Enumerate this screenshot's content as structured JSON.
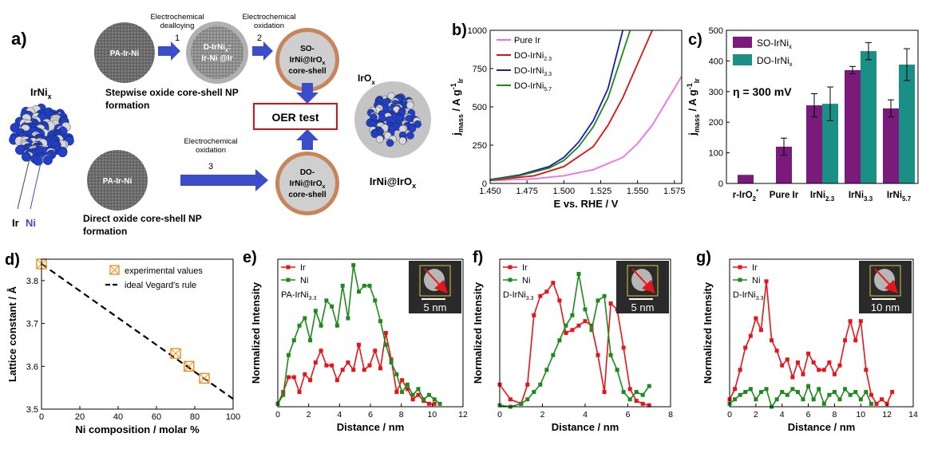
{
  "colors": {
    "ir": "#e8141a",
    "ni": "#1e8a1e",
    "pure_ir": "#f06ee8",
    "do22": "#e01010",
    "do33": "#1a1ab8",
    "do57": "#1a8a1a",
    "so_bar": "#7a1a7a",
    "do_bar": "#1a8f86",
    "blue": "#1f3fcc",
    "arrow": "#3b4ec8",
    "shell": "#c8845a",
    "np": "#555555"
  },
  "icons": [
    "arrow-right-icon",
    "arrow-down-icon",
    "arrow-up-icon",
    "nanoparticle-icon",
    "core-shell-icon",
    "scale-bar-icon",
    "red-arrow-icon"
  ],
  "panel_a": {
    "label": "a)",
    "irni_title": "IrNi",
    "irni_sub": "x",
    "legend_ir": "Ir",
    "legend_ni": "Ni",
    "step1_top": "Electrochemical",
    "step1_mid": "dealloying",
    "step1_num": "1",
    "step2_top": "Electrochemical",
    "step2_mid": "oxidation",
    "step2_num": "2",
    "step3_top": "Electrochemical",
    "step3_mid": "oxidation",
    "step3_num": "3",
    "np1": "PA-Ir-Ni",
    "np2_l1": "D-IrNi",
    "np2_sub": "x",
    "np2_l2": "Ir-Ni @Ir",
    "so_l1": "SO-",
    "so_l2": "IrNi@IrO",
    "so_sub": "x",
    "so_l3": "core-shell",
    "np3": "PA-Ir-Ni",
    "do_l1": "DO-",
    "do_l2": "IrNi@IrO",
    "do_sub": "x",
    "do_l3": "core-shell",
    "oer": "OER test",
    "stepwise_l1": "Stepwise oxide core-shell NP",
    "stepwise_l2": "formation",
    "direct_l1": "Direct oxide core-shell NP",
    "direct_l2": "formation",
    "irox": "IrO",
    "irox_sub": "x",
    "final": "IrNi@IrO",
    "final_sub": "x"
  },
  "chart_data": [
    {
      "id": "b",
      "type": "line",
      "label": "b)",
      "xlabel": "E vs. RHE / V",
      "ylabel_main": "j",
      "ylabel_sub": "mass",
      "ylabel_unit": " / A g",
      "ylabel_sup": "-1",
      "ylabel_sub2": "Ir",
      "xlim": [
        1.45,
        1.58
      ],
      "ylim": [
        0,
        1000
      ],
      "xticks": [
        "1.450",
        "1.475",
        "1.500",
        "1.525",
        "1.550",
        "1.575"
      ],
      "yticks": [
        "0",
        "250",
        "500",
        "750",
        "1000"
      ],
      "series": [
        {
          "name": "Pure Ir",
          "sub": "",
          "x": [
            1.45,
            1.48,
            1.5,
            1.52,
            1.54,
            1.55,
            1.56,
            1.57,
            1.58
          ],
          "y": [
            18,
            30,
            50,
            90,
            170,
            260,
            380,
            540,
            700
          ]
        },
        {
          "name": "DO-IrNi",
          "sub": "2.3",
          "x": [
            1.45,
            1.48,
            1.5,
            1.52,
            1.53,
            1.54,
            1.55,
            1.56
          ],
          "y": [
            20,
            50,
            110,
            240,
            380,
            560,
            780,
            1000
          ]
        },
        {
          "name": "DO-IrNi",
          "sub": "3.3",
          "x": [
            1.45,
            1.47,
            1.49,
            1.5,
            1.51,
            1.52,
            1.53,
            1.54
          ],
          "y": [
            25,
            55,
            110,
            170,
            270,
            410,
            620,
            1000
          ]
        },
        {
          "name": "DO-IrNi",
          "sub": "5.7",
          "x": [
            1.45,
            1.47,
            1.49,
            1.5,
            1.51,
            1.52,
            1.53,
            1.545
          ],
          "y": [
            22,
            50,
            100,
            150,
            240,
            370,
            560,
            1000
          ]
        }
      ]
    },
    {
      "id": "c",
      "type": "bar",
      "label": "c)",
      "ylabel_main": "j",
      "ylabel_sub": "mass",
      "ylabel_unit": " / A g",
      "ylabel_sup": "-1",
      "ylabel_sub2": "Ir",
      "annotation": "η = 300 mV",
      "ylim": [
        0,
        500
      ],
      "yticks": [
        "0",
        "100",
        "200",
        "300",
        "400",
        "500"
      ],
      "categories": [
        {
          "main": "r-IrO",
          "sub": "",
          "sup": "2",
          "sup2": "*"
        },
        {
          "main": "Pure Ir",
          "sub": ""
        },
        {
          "main": "IrNi",
          "sub": "2.3"
        },
        {
          "main": "IrNi",
          "sub": "3.3"
        },
        {
          "main": "IrNi",
          "sub": "5.7"
        }
      ],
      "series": [
        {
          "name": "SO-IrNi",
          "sub": "x",
          "values": [
            28,
            120,
            255,
            370,
            245
          ],
          "err": [
            0,
            28,
            38,
            12,
            28
          ]
        },
        {
          "name": "DO-IrNi",
          "sub": "x",
          "values": [
            null,
            null,
            260,
            432,
            388
          ],
          "err": [
            0,
            0,
            55,
            28,
            52
          ]
        }
      ]
    },
    {
      "id": "d",
      "type": "scatter",
      "label": "d)",
      "xlabel": "Ni composition / molar %",
      "ylabel": "Lattice constant / Å",
      "xlim": [
        0,
        100
      ],
      "ylim": [
        3.5,
        3.85
      ],
      "xticks": [
        "0",
        "20",
        "40",
        "60",
        "80",
        "100"
      ],
      "yticks": [
        "3.5",
        "3.6",
        "3.7",
        "3.8"
      ],
      "legend": [
        "experimental values",
        "ideal Vegard's rule"
      ],
      "points": {
        "x": [
          0,
          70,
          77,
          85
        ],
        "y": [
          3.839,
          3.63,
          3.6,
          3.572
        ]
      },
      "line": {
        "x": [
          0,
          100
        ],
        "y": [
          3.839,
          3.524
        ]
      }
    },
    {
      "id": "e",
      "type": "line",
      "label": "e)",
      "xlabel": "Distance / nm",
      "ylabel": "Normalized Intensity",
      "xlim": [
        0,
        12
      ],
      "xticks": [
        "0",
        "2",
        "4",
        "6",
        "8",
        "10",
        "12"
      ],
      "legend_ir": "Ir",
      "legend_ni": "Ni",
      "sample": "PA-IrNi",
      "sample_sub": "3.3",
      "scale": "5 nm",
      "series": [
        {
          "name": "Ir",
          "x": [
            0,
            0.35,
            0.7,
            1.05,
            1.4,
            1.75,
            2.1,
            2.45,
            2.8,
            3.15,
            3.5,
            3.85,
            4.2,
            4.55,
            4.9,
            5.25,
            5.6,
            5.95,
            6.3,
            6.65,
            7.0,
            7.35,
            7.7,
            8.05,
            8.4,
            8.75,
            9.1,
            9.45,
            9.8,
            10.15
          ],
          "y": [
            0.02,
            0.1,
            0.2,
            0.2,
            0.1,
            0.22,
            0.18,
            0.3,
            0.38,
            0.28,
            0.28,
            0.18,
            0.25,
            0.3,
            0.25,
            0.42,
            0.25,
            0.28,
            0.38,
            0.26,
            0.5,
            0.32,
            0.1,
            0.18,
            0.12,
            0.05,
            0.08,
            0.04,
            0.02,
            0.02
          ]
        },
        {
          "name": "Ni",
          "x": [
            0,
            0.35,
            0.7,
            1.05,
            1.4,
            1.75,
            2.1,
            2.45,
            2.8,
            3.15,
            3.5,
            3.85,
            4.2,
            4.55,
            4.9,
            5.25,
            5.6,
            5.95,
            6.3,
            6.65,
            7.0,
            7.35,
            7.7,
            8.05,
            8.4,
            8.75,
            9.1,
            9.45,
            9.8,
            10.15,
            10.5
          ],
          "y": [
            0.02,
            0.08,
            0.35,
            0.45,
            0.55,
            0.6,
            0.45,
            0.65,
            0.55,
            0.72,
            0.68,
            0.55,
            0.82,
            0.6,
            0.96,
            0.78,
            0.82,
            0.82,
            0.72,
            0.58,
            0.42,
            0.3,
            0.22,
            0.1,
            0.15,
            0.08,
            0.12,
            0.05,
            0.08,
            0.05,
            0.02
          ]
        }
      ]
    },
    {
      "id": "f",
      "type": "line",
      "label": "f)",
      "xlabel": "Distance / nm",
      "ylabel": "Normalized Intensity",
      "xlim": [
        0,
        8
      ],
      "xticks": [
        "0",
        "2",
        "4",
        "6",
        "8"
      ],
      "legend_ir": "Ir",
      "legend_ni": "Ni",
      "sample": "D-IrNi",
      "sample_sub": "3.3",
      "scale": "5 nm",
      "series": [
        {
          "name": "Ir",
          "x": [
            0,
            0.5,
            1.0,
            1.3,
            1.6,
            1.9,
            2.2,
            2.5,
            2.8,
            3.1,
            3.4,
            3.7,
            4.0,
            4.3,
            4.6,
            4.9,
            5.2,
            5.5,
            5.8,
            6.1,
            6.4,
            6.7,
            7.0
          ],
          "y": [
            0.15,
            0.05,
            0.02,
            0.15,
            0.62,
            0.75,
            0.78,
            0.84,
            0.72,
            0.5,
            0.52,
            0.55,
            0.58,
            0.55,
            0.35,
            0.1,
            0.7,
            0.66,
            0.4,
            0.12,
            0.04,
            0.02,
            0.01
          ]
        },
        {
          "name": "Ni",
          "x": [
            0,
            0.5,
            1.0,
            1.3,
            1.6,
            1.9,
            2.2,
            2.5,
            2.8,
            3.1,
            3.4,
            3.7,
            4.0,
            4.3,
            4.6,
            4.9,
            5.2,
            5.5,
            5.8,
            6.1,
            6.4,
            6.7,
            7.0
          ],
          "y": [
            0.01,
            0.0,
            0.02,
            0.05,
            0.1,
            0.15,
            0.25,
            0.35,
            0.45,
            0.55,
            0.62,
            0.9,
            0.66,
            0.52,
            0.72,
            0.75,
            0.35,
            0.25,
            0.1,
            0.05,
            0.1,
            0.08,
            0.14
          ]
        }
      ]
    },
    {
      "id": "g",
      "type": "line",
      "label": "g)",
      "xlabel": "Distance / nm",
      "ylabel": "Normalized Intensity",
      "xlim": [
        0,
        14
      ],
      "xticks": [
        "0",
        "2",
        "4",
        "6",
        "8",
        "10",
        "12",
        "14"
      ],
      "legend_ir": "Ir",
      "legend_ni": "Ni",
      "sample": "D-IrNi",
      "sample_sub": "3.3",
      "scale": "10 nm",
      "series": [
        {
          "name": "Ir",
          "x": [
            0,
            0.4,
            0.8,
            1.2,
            1.6,
            2.0,
            2.4,
            2.8,
            3.2,
            3.6,
            4.0,
            4.4,
            4.8,
            5.2,
            5.6,
            6.0,
            6.4,
            6.8,
            7.2,
            7.6,
            8.0,
            8.4,
            8.8,
            9.2,
            9.6,
            10.0,
            10.4,
            10.8,
            11.2,
            11.6,
            12.0,
            12.4
          ],
          "y": [
            0.05,
            0.12,
            0.25,
            0.4,
            0.48,
            0.6,
            0.52,
            0.85,
            0.45,
            0.38,
            0.28,
            0.32,
            0.2,
            0.3,
            0.22,
            0.36,
            0.3,
            0.25,
            0.25,
            0.3,
            0.22,
            0.28,
            0.45,
            0.58,
            0.45,
            0.58,
            0.25,
            0.08,
            0.02,
            0.05,
            0.02,
            0.1
          ]
        },
        {
          "name": "Ni",
          "x": [
            0,
            0.4,
            0.8,
            1.2,
            1.6,
            2.0,
            2.4,
            2.8,
            3.2,
            3.6,
            4.0,
            4.4,
            4.8,
            5.2,
            5.6,
            6.0,
            6.4,
            6.8,
            7.2,
            7.6,
            8.0,
            8.4,
            8.8,
            9.2,
            9.6,
            10.0,
            10.4,
            10.8
          ],
          "y": [
            0.02,
            0.05,
            0.08,
            0.1,
            0.12,
            0.05,
            0.1,
            0.12,
            0.0,
            0.05,
            0.1,
            0.08,
            0.12,
            0.1,
            0.05,
            0.14,
            0.05,
            0.12,
            0.02,
            0.08,
            0.1,
            0.05,
            0.12,
            0.08,
            0.1,
            0.05,
            0.1,
            0.02
          ]
        }
      ]
    }
  ]
}
